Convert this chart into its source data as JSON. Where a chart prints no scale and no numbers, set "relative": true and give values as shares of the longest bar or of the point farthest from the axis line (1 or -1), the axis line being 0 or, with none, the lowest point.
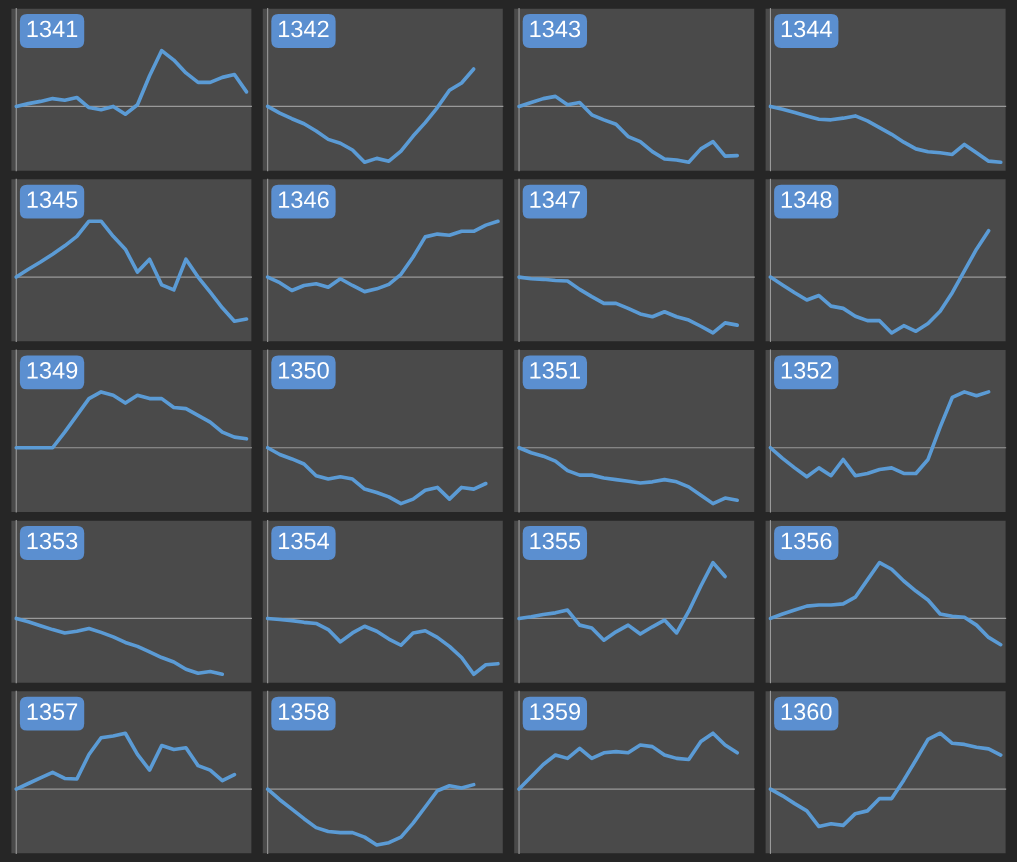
{
  "chart_data": [
    {
      "type": "line",
      "title": "1341",
      "relative": true,
      "color": "#5b9bd5",
      "categories": [
        null,
        null,
        null,
        null,
        null,
        null,
        null,
        null,
        null,
        null,
        null,
        null,
        null,
        null,
        null,
        null,
        null,
        null,
        null,
        null
      ],
      "values": [
        0,
        0.05,
        0.09,
        0.14,
        0.11,
        0.16,
        -0.02,
        -0.06,
        0,
        -0.14,
        0.03,
        0.55,
        1,
        0.83,
        0.6,
        0.43,
        0.43,
        0.52,
        0.57,
        0.26
      ]
    },
    {
      "type": "line",
      "title": "1342",
      "relative": true,
      "color": "#5b9bd5",
      "categories": [
        null,
        null,
        null,
        null,
        null,
        null,
        null,
        null,
        null,
        null,
        null,
        null,
        null,
        null,
        null,
        null,
        null,
        null,
        null,
        null
      ],
      "values": [
        0,
        -0.12,
        -0.22,
        -0.31,
        -0.44,
        -0.59,
        -0.66,
        -0.78,
        -1,
        -0.93,
        -0.98,
        -0.8,
        -0.53,
        -0.29,
        -0.02,
        0.29,
        0.42,
        0.67,
        null,
        null
      ]
    },
    {
      "type": "line",
      "title": "1343",
      "relative": true,
      "color": "#5b9bd5",
      "categories": [
        null,
        null,
        null,
        null,
        null,
        null,
        null,
        null,
        null,
        null,
        null,
        null,
        null,
        null,
        null,
        null,
        null,
        null,
        null,
        null
      ],
      "values": [
        0,
        0.07,
        0.14,
        0.18,
        0.03,
        0.07,
        -0.15,
        -0.24,
        -0.32,
        -0.54,
        -0.63,
        -0.81,
        -0.94,
        -0.96,
        -1,
        -0.76,
        -0.63,
        -0.89,
        -0.88,
        null
      ]
    },
    {
      "type": "line",
      "title": "1344",
      "relative": true,
      "color": "#5b9bd5",
      "categories": [
        null,
        null,
        null,
        null,
        null,
        null,
        null,
        null,
        null,
        null,
        null,
        null,
        null,
        null,
        null,
        null,
        null,
        null,
        null,
        null
      ],
      "values": [
        0,
        -0.05,
        -0.11,
        -0.17,
        -0.23,
        -0.24,
        -0.21,
        -0.17,
        -0.26,
        -0.38,
        -0.5,
        -0.64,
        -0.76,
        -0.81,
        -0.83,
        -0.86,
        -0.68,
        -0.83,
        -0.98,
        -1
      ]
    },
    {
      "type": "line",
      "title": "1345",
      "relative": true,
      "color": "#5b9bd5",
      "categories": [
        null,
        null,
        null,
        null,
        null,
        null,
        null,
        null,
        null,
        null,
        null,
        null,
        null,
        null,
        null,
        null,
        null,
        null,
        null,
        null
      ],
      "values": [
        0,
        0.14,
        0.27,
        0.41,
        0.56,
        0.73,
        1,
        1,
        0.73,
        0.5,
        0.09,
        0.32,
        -0.14,
        -0.23,
        0.32,
        0,
        -0.27,
        -0.55,
        -0.79,
        -0.75
      ]
    },
    {
      "type": "line",
      "title": "1346",
      "relative": true,
      "color": "#5b9bd5",
      "categories": [
        null,
        null,
        null,
        null,
        null,
        null,
        null,
        null,
        null,
        null,
        null,
        null,
        null,
        null,
        null,
        null,
        null,
        null,
        null,
        null
      ],
      "values": [
        0,
        -0.1,
        -0.24,
        -0.15,
        -0.12,
        -0.18,
        -0.03,
        -0.15,
        -0.26,
        -0.21,
        -0.13,
        0.05,
        0.36,
        0.72,
        0.77,
        0.75,
        0.82,
        0.82,
        0.93,
        1
      ]
    },
    {
      "type": "line",
      "title": "1347",
      "relative": true,
      "color": "#5b9bd5",
      "categories": [
        null,
        null,
        null,
        null,
        null,
        null,
        null,
        null,
        null,
        null,
        null,
        null,
        null,
        null,
        null,
        null,
        null,
        null,
        null,
        null
      ],
      "values": [
        0,
        -0.03,
        -0.04,
        -0.06,
        -0.07,
        -0.22,
        -0.35,
        -0.47,
        -0.47,
        -0.56,
        -0.66,
        -0.71,
        -0.62,
        -0.71,
        -0.77,
        -0.88,
        -1,
        -0.82,
        -0.86,
        null
      ]
    },
    {
      "type": "line",
      "title": "1348",
      "relative": true,
      "color": "#5b9bd5",
      "categories": [
        null,
        null,
        null,
        null,
        null,
        null,
        null,
        null,
        null,
        null,
        null,
        null,
        null,
        null,
        null,
        null,
        null,
        null,
        null,
        null
      ],
      "values": [
        0,
        -0.14,
        -0.28,
        -0.41,
        -0.33,
        -0.52,
        -0.56,
        -0.7,
        -0.78,
        -0.78,
        -1,
        -0.87,
        -0.97,
        -0.83,
        -0.61,
        -0.28,
        0.11,
        0.5,
        0.83,
        null
      ]
    },
    {
      "type": "line",
      "title": "1349",
      "relative": true,
      "color": "#5b9bd5",
      "categories": [
        null,
        null,
        null,
        null,
        null,
        null,
        null,
        null,
        null,
        null,
        null,
        null,
        null,
        null,
        null,
        null,
        null,
        null,
        null,
        null
      ],
      "values": [
        0,
        0,
        0,
        0,
        0.28,
        0.58,
        0.88,
        1,
        0.94,
        0.8,
        0.94,
        0.88,
        0.88,
        0.72,
        0.7,
        0.58,
        0.46,
        0.28,
        0.19,
        0.16
      ]
    },
    {
      "type": "line",
      "title": "1350",
      "relative": true,
      "color": "#5b9bd5",
      "categories": [
        null,
        null,
        null,
        null,
        null,
        null,
        null,
        null,
        null,
        null,
        null,
        null,
        null,
        null,
        null,
        null,
        null,
        null,
        null,
        null
      ],
      "values": [
        0,
        -0.12,
        -0.2,
        -0.29,
        -0.5,
        -0.56,
        -0.52,
        -0.56,
        -0.74,
        -0.8,
        -0.88,
        -1,
        -0.92,
        -0.76,
        -0.71,
        -0.92,
        -0.71,
        -0.74,
        -0.64,
        null
      ]
    },
    {
      "type": "line",
      "title": "1351",
      "relative": true,
      "color": "#5b9bd5",
      "categories": [
        null,
        null,
        null,
        null,
        null,
        null,
        null,
        null,
        null,
        null,
        null,
        null,
        null,
        null,
        null,
        null,
        null,
        null,
        null,
        null
      ],
      "values": [
        0,
        -0.09,
        -0.15,
        -0.24,
        -0.41,
        -0.49,
        -0.49,
        -0.54,
        -0.57,
        -0.6,
        -0.63,
        -0.61,
        -0.57,
        -0.61,
        -0.7,
        -0.85,
        -1,
        -0.9,
        -0.94,
        null
      ]
    },
    {
      "type": "line",
      "title": "1352",
      "relative": true,
      "color": "#5b9bd5",
      "categories": [
        null,
        null,
        null,
        null,
        null,
        null,
        null,
        null,
        null,
        null,
        null,
        null,
        null,
        null,
        null,
        null,
        null,
        null,
        null,
        null
      ],
      "values": [
        0,
        -0.19,
        -0.36,
        -0.52,
        -0.36,
        -0.5,
        -0.21,
        -0.5,
        -0.46,
        -0.39,
        -0.36,
        -0.46,
        -0.46,
        -0.21,
        0.37,
        0.9,
        1,
        0.93,
        1,
        null
      ]
    },
    {
      "type": "line",
      "title": "1353",
      "relative": true,
      "color": "#5b9bd5",
      "categories": [
        null,
        null,
        null,
        null,
        null,
        null,
        null,
        null,
        null,
        null,
        null,
        null,
        null,
        null,
        null,
        null,
        null,
        null,
        null,
        null
      ],
      "values": [
        0,
        -0.06,
        -0.13,
        -0.2,
        -0.26,
        -0.23,
        -0.18,
        -0.25,
        -0.33,
        -0.43,
        -0.5,
        -0.6,
        -0.7,
        -0.78,
        -0.91,
        -0.98,
        -0.95,
        -1,
        null,
        null
      ]
    },
    {
      "type": "line",
      "title": "1354",
      "relative": true,
      "color": "#5b9bd5",
      "categories": [
        null,
        null,
        null,
        null,
        null,
        null,
        null,
        null,
        null,
        null,
        null,
        null,
        null,
        null,
        null,
        null,
        null,
        null,
        null,
        null
      ],
      "values": [
        0,
        -0.02,
        -0.04,
        -0.07,
        -0.09,
        -0.2,
        -0.42,
        -0.26,
        -0.14,
        -0.23,
        -0.37,
        -0.48,
        -0.26,
        -0.22,
        -0.34,
        -0.5,
        -0.7,
        -1,
        -0.83,
        -0.81
      ]
    },
    {
      "type": "line",
      "title": "1355",
      "relative": true,
      "color": "#5b9bd5",
      "categories": [
        null,
        null,
        null,
        null,
        null,
        null,
        null,
        null,
        null,
        null,
        null,
        null,
        null,
        null,
        null,
        null,
        null,
        null,
        null,
        null
      ],
      "values": [
        0,
        0.03,
        0.07,
        0.1,
        0.15,
        -0.12,
        -0.17,
        -0.39,
        -0.24,
        -0.12,
        -0.28,
        -0.15,
        -0.03,
        -0.26,
        0.13,
        0.58,
        1,
        0.75,
        null,
        null
      ]
    },
    {
      "type": "line",
      "title": "1356",
      "relative": true,
      "color": "#5b9bd5",
      "categories": [
        null,
        null,
        null,
        null,
        null,
        null,
        null,
        null,
        null,
        null,
        null,
        null,
        null,
        null,
        null,
        null,
        null,
        null,
        null,
        null
      ],
      "values": [
        0,
        0.08,
        0.15,
        0.22,
        0.24,
        0.24,
        0.26,
        0.38,
        0.69,
        1,
        0.88,
        0.67,
        0.49,
        0.33,
        0.08,
        0.04,
        0.02,
        -0.12,
        -0.34,
        -0.47
      ]
    },
    {
      "type": "line",
      "title": "1357",
      "relative": true,
      "color": "#5b9bd5",
      "categories": [
        null,
        null,
        null,
        null,
        null,
        null,
        null,
        null,
        null,
        null,
        null,
        null,
        null,
        null,
        null,
        null,
        null,
        null,
        null,
        null
      ],
      "values": [
        0,
        0.1,
        0.2,
        0.3,
        0.19,
        0.18,
        0.62,
        0.92,
        0.95,
        1,
        0.62,
        0.34,
        0.78,
        0.71,
        0.74,
        0.42,
        0.34,
        0.15,
        0.26,
        null
      ]
    },
    {
      "type": "line",
      "title": "1358",
      "relative": true,
      "color": "#5b9bd5",
      "categories": [
        null,
        null,
        null,
        null,
        null,
        null,
        null,
        null,
        null,
        null,
        null,
        null,
        null,
        null,
        null,
        null,
        null,
        null,
        null,
        null
      ],
      "values": [
        0,
        -0.19,
        -0.36,
        -0.53,
        -0.69,
        -0.76,
        -0.78,
        -0.78,
        -0.86,
        -1,
        -0.96,
        -0.86,
        -0.61,
        -0.32,
        -0.03,
        0.06,
        0.02,
        0.08,
        null,
        null
      ]
    },
    {
      "type": "line",
      "title": "1359",
      "relative": true,
      "color": "#5b9bd5",
      "categories": [
        null,
        null,
        null,
        null,
        null,
        null,
        null,
        null,
        null,
        null,
        null,
        null,
        null,
        null,
        null,
        null,
        null,
        null,
        null,
        null
      ],
      "values": [
        0,
        0.22,
        0.44,
        0.61,
        0.55,
        0.73,
        0.55,
        0.65,
        0.67,
        0.65,
        0.79,
        0.76,
        0.61,
        0.55,
        0.53,
        0.85,
        1,
        0.79,
        0.65,
        null
      ]
    },
    {
      "type": "line",
      "title": "1360",
      "relative": true,
      "color": "#5b9bd5",
      "categories": [
        null,
        null,
        null,
        null,
        null,
        null,
        null,
        null,
        null,
        null,
        null,
        null,
        null,
        null,
        null,
        null,
        null,
        null,
        null,
        null
      ],
      "values": [
        0,
        -0.12,
        -0.26,
        -0.39,
        -0.67,
        -0.62,
        -0.65,
        -0.44,
        -0.39,
        -0.17,
        -0.17,
        0.16,
        0.52,
        0.89,
        1,
        0.82,
        0.8,
        0.75,
        0.72,
        0.61
      ]
    }
  ]
}
